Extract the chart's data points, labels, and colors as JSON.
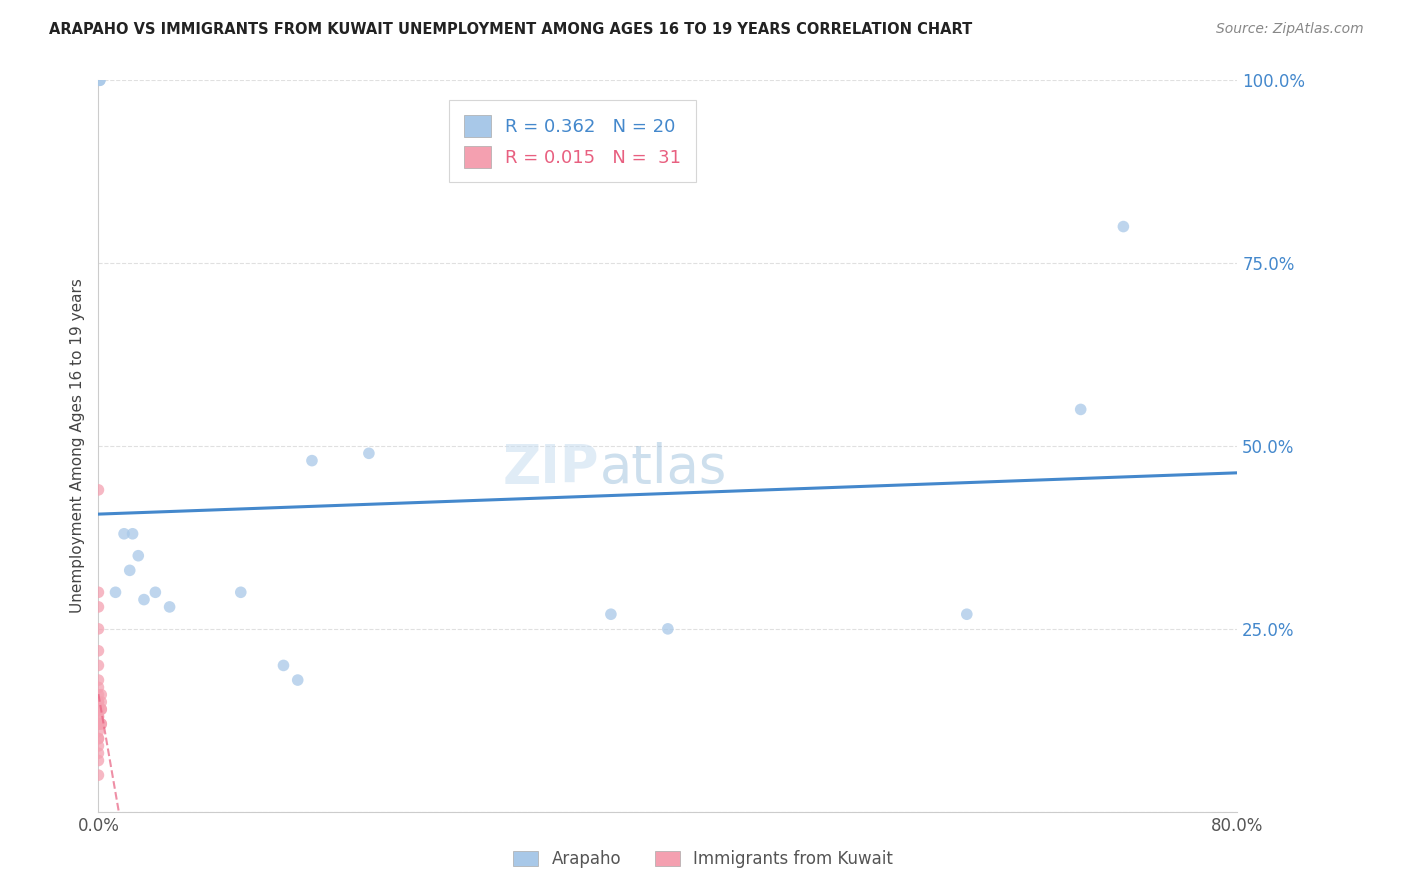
{
  "title": "ARAPAHO VS IMMIGRANTS FROM KUWAIT UNEMPLOYMENT AMONG AGES 16 TO 19 YEARS CORRELATION CHART",
  "source": "Source: ZipAtlas.com",
  "ylabel": "Unemployment Among Ages 16 to 19 years",
  "xlim": [
    0.0,
    0.8
  ],
  "ylim": [
    0.0,
    1.0
  ],
  "arapaho_x": [
    0.001,
    0.001,
    0.012,
    0.018,
    0.022,
    0.024,
    0.028,
    0.032,
    0.04,
    0.05,
    0.1,
    0.13,
    0.14,
    0.15,
    0.19,
    0.36,
    0.61,
    0.69,
    0.72,
    0.4
  ],
  "arapaho_y": [
    1.0,
    1.0,
    0.3,
    0.38,
    0.33,
    0.38,
    0.35,
    0.29,
    0.3,
    0.28,
    0.3,
    0.2,
    0.18,
    0.48,
    0.49,
    0.27,
    0.27,
    0.55,
    0.8,
    0.25
  ],
  "kuwait_x": [
    0.0,
    0.0,
    0.0,
    0.0,
    0.0,
    0.0,
    0.0,
    0.0,
    0.0,
    0.0,
    0.0,
    0.0,
    0.0,
    0.0,
    0.0,
    0.0,
    0.0,
    0.0,
    0.0,
    0.0,
    0.0,
    0.0,
    0.0,
    0.0,
    0.0,
    0.002,
    0.002,
    0.002,
    0.002,
    0.002,
    0.002
  ],
  "kuwait_y": [
    0.05,
    0.07,
    0.08,
    0.09,
    0.1,
    0.1,
    0.11,
    0.12,
    0.12,
    0.13,
    0.13,
    0.14,
    0.14,
    0.14,
    0.15,
    0.15,
    0.16,
    0.17,
    0.18,
    0.2,
    0.22,
    0.25,
    0.28,
    0.3,
    0.44,
    0.12,
    0.12,
    0.14,
    0.14,
    0.15,
    0.16
  ],
  "arapaho_color": "#a8c8e8",
  "kuwait_color": "#f4a0b0",
  "blue_line_color": "#4488cc",
  "pink_line_color": "#e86080",
  "watermark_zip": "ZIP",
  "watermark_atlas": "atlas",
  "marker_size": 70,
  "background_color": "#ffffff",
  "grid_color": "#e0e0e0",
  "ytick_color": "#4488cc",
  "xtick_color": "#555555",
  "legend_R1": "R = 0.362",
  "legend_N1": "N = 20",
  "legend_R2": "R = 0.015",
  "legend_N2": "N =  31",
  "legend_color1": "#4488cc",
  "legend_color2": "#e86080"
}
